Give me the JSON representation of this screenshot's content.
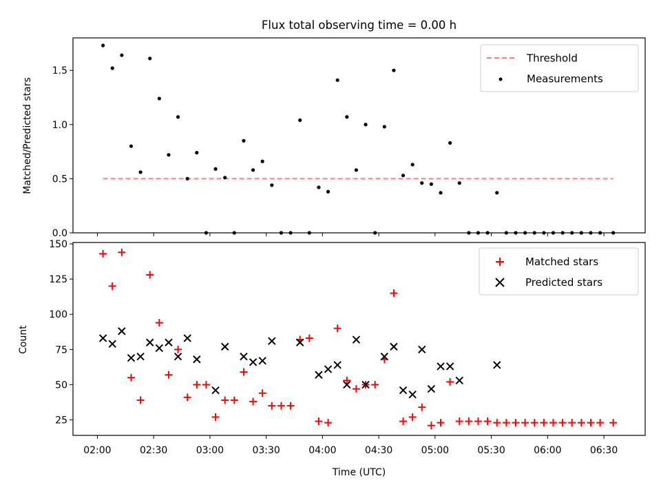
{
  "chart_data": [
    {
      "type": "scatter",
      "title": "Flux total observing time = 0.00 h",
      "xlabel": "",
      "ylabel": "Matched/Predicted stars",
      "xlim": [
        "01:47",
        "06:52"
      ],
      "ylim": [
        0,
        1.8
      ],
      "yticks": [
        0.0,
        0.5,
        1.0,
        1.5
      ],
      "ytick_labels": [
        "0.0",
        "0.5",
        "1.0",
        "1.5"
      ],
      "grid": false,
      "legend_position": "top-right",
      "series": [
        {
          "name": "Threshold",
          "kind": "dashed-line",
          "color": "#ff7f7f",
          "x": [
            "02:03",
            "06:35"
          ],
          "y": [
            0.5,
            0.5
          ]
        },
        {
          "name": "Measurements",
          "kind": "dot",
          "color": "#000000",
          "x": [
            "02:03",
            "02:08",
            "02:13",
            "02:18",
            "02:23",
            "02:28",
            "02:33",
            "02:38",
            "02:43",
            "02:48",
            "02:53",
            "02:58",
            "03:03",
            "03:08",
            "03:13",
            "03:18",
            "03:23",
            "03:28",
            "03:33",
            "03:38",
            "03:43",
            "03:48",
            "03:53",
            "03:58",
            "04:03",
            "04:08",
            "04:13",
            "04:18",
            "04:23",
            "04:28",
            "04:33",
            "04:38",
            "04:43",
            "04:48",
            "04:53",
            "04:58",
            "05:03",
            "05:08",
            "05:13",
            "05:18",
            "05:23",
            "05:28",
            "05:33",
            "05:38",
            "05:43",
            "05:48",
            "05:53",
            "05:58",
            "06:03",
            "06:08",
            "06:13",
            "06:18",
            "06:23",
            "06:28",
            "06:35"
          ],
          "y": [
            1.73,
            1.52,
            1.64,
            0.8,
            0.56,
            1.61,
            1.24,
            0.72,
            1.07,
            0.5,
            0.74,
            0.0,
            0.59,
            0.51,
            0.0,
            0.85,
            0.58,
            0.66,
            0.44,
            0.0,
            0.0,
            1.04,
            0.0,
            0.42,
            0.38,
            1.41,
            1.07,
            0.58,
            1.0,
            0.0,
            0.98,
            1.5,
            0.53,
            0.63,
            0.46,
            0.45,
            0.37,
            0.83,
            0.46,
            0.0,
            0.0,
            0.0,
            0.37,
            0.0,
            0.0,
            0.0,
            0.0,
            0.0,
            0.0,
            0.0,
            0.0,
            0.0,
            0.0,
            0.0,
            0.0
          ]
        }
      ]
    },
    {
      "type": "scatter",
      "title": "",
      "xlabel": "Time (UTC)",
      "ylabel": "Count",
      "xlim": [
        "01:47",
        "06:52"
      ],
      "ylim": [
        14,
        151
      ],
      "xticks": [
        "02:00",
        "02:30",
        "03:00",
        "03:30",
        "04:00",
        "04:30",
        "05:00",
        "05:30",
        "06:00",
        "06:30"
      ],
      "yticks": [
        25,
        50,
        75,
        100,
        125,
        150
      ],
      "ytick_labels": [
        "25",
        "50",
        "75",
        "100",
        "125",
        "150"
      ],
      "grid": false,
      "legend_position": "top-right",
      "series": [
        {
          "name": "Matched stars",
          "marker": "plus",
          "color": "#ff0000",
          "x": [
            "02:03",
            "02:08",
            "02:13",
            "02:18",
            "02:23",
            "02:28",
            "02:33",
            "02:38",
            "02:43",
            "02:48",
            "02:53",
            "02:58",
            "03:03",
            "03:08",
            "03:13",
            "03:18",
            "03:23",
            "03:28",
            "03:33",
            "03:38",
            "03:43",
            "03:48",
            "03:53",
            "03:58",
            "04:03",
            "04:08",
            "04:13",
            "04:18",
            "04:23",
            "04:28",
            "04:33",
            "04:38",
            "04:43",
            "04:48",
            "04:53",
            "04:58",
            "05:03",
            "05:08",
            "05:13",
            "05:18",
            "05:23",
            "05:28",
            "05:33",
            "05:38",
            "05:43",
            "05:48",
            "05:53",
            "05:58",
            "06:03",
            "06:08",
            "06:13",
            "06:18",
            "06:23",
            "06:28",
            "06:35"
          ],
          "y": [
            143,
            120,
            144,
            55,
            39,
            128,
            94,
            57,
            75,
            41,
            50,
            50,
            27,
            39,
            39,
            59,
            38,
            44,
            35,
            35,
            35,
            82,
            83,
            24,
            23,
            90,
            53,
            47,
            50,
            50,
            68,
            115,
            24,
            27,
            34,
            21,
            23,
            52,
            24,
            24,
            24,
            24,
            23,
            23,
            23,
            23,
            23,
            23,
            23,
            23,
            23,
            23,
            23,
            23,
            23
          ]
        },
        {
          "name": "Predicted stars",
          "marker": "x",
          "color": "#000000",
          "x": [
            "02:03",
            "02:08",
            "02:13",
            "02:18",
            "02:23",
            "02:28",
            "02:33",
            "02:38",
            "02:43",
            "02:48",
            "02:53",
            "03:03",
            "03:08",
            "03:18",
            "03:23",
            "03:28",
            "03:33",
            "03:48",
            "03:58",
            "04:03",
            "04:08",
            "04:13",
            "04:18",
            "04:23",
            "04:33",
            "04:38",
            "04:43",
            "04:48",
            "04:53",
            "04:58",
            "05:03",
            "05:08",
            "05:13",
            "05:33"
          ],
          "y": [
            83,
            79,
            88,
            69,
            70,
            80,
            76,
            80,
            70,
            83,
            68,
            46,
            77,
            70,
            66,
            67,
            81,
            80,
            57,
            61,
            64,
            50,
            82,
            50,
            70,
            77,
            46,
            43,
            75,
            47,
            63,
            63,
            53,
            64
          ]
        }
      ]
    }
  ]
}
